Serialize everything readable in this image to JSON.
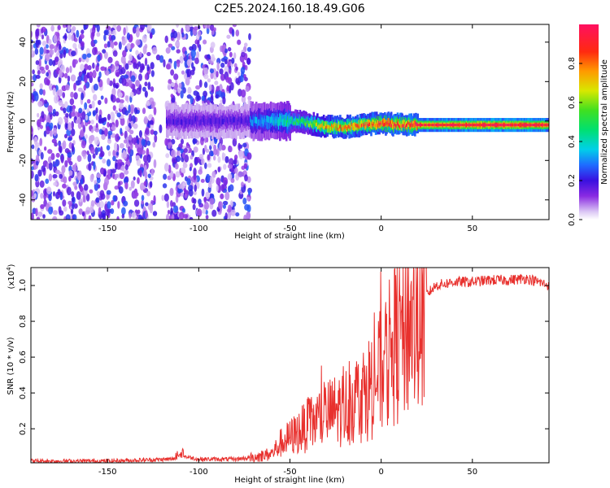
{
  "title": "C2E5.2024.160.18.49.G06",
  "chart_data": [
    {
      "type": "heatmap",
      "xlabel": "Height of straight line (km)",
      "ylabel": "Frequency (Hz)",
      "xlim": [
        -192,
        92
      ],
      "ylim": [
        -50,
        49
      ],
      "xticks": [
        -150,
        -100,
        -50,
        0,
        50
      ],
      "yticks": [
        -40,
        -20,
        0,
        20,
        40
      ],
      "colorbar": {
        "label": "Normalized spectral amplitude",
        "range": [
          0.0,
          1.0
        ],
        "ticks": [
          0.0,
          0.2,
          0.4,
          0.6,
          0.8
        ]
      },
      "ridge": {
        "x": [
          -72,
          -60,
          -50,
          -40,
          -30,
          -20,
          -10,
          0,
          10,
          20,
          40,
          60,
          80,
          92
        ],
        "freq": [
          0,
          0,
          0,
          -1,
          -3,
          -3,
          -2,
          -1,
          -2,
          -2,
          -2,
          -2,
          -2,
          -2
        ],
        "amplitude": [
          0.3,
          0.35,
          0.45,
          0.55,
          0.75,
          0.8,
          0.85,
          0.88,
          0.9,
          0.93,
          0.97,
          1.0,
          1.0,
          0.95
        ]
      },
      "noise_region": {
        "x": [
          -192,
          -72
        ],
        "amplitude": 0.15
      }
    },
    {
      "type": "line",
      "xlabel": "Height of straight line (km)",
      "ylabel": "SNR (10 * v/v)",
      "y_multiplier": "(x10",
      "y_multiplier_exp": "4",
      "xlim": [
        -192,
        92
      ],
      "ylim": [
        0.01,
        1.1
      ],
      "xticks": [
        -150,
        -100,
        -50,
        0,
        50
      ],
      "yticks": [
        0.2,
        0.4,
        0.6,
        0.8,
        1.0
      ],
      "color": "#e8312e",
      "series": [
        {
          "x": [
            -192,
            -150,
            -115,
            -110,
            -100,
            -80,
            -70,
            -60,
            -55,
            -50,
            -40,
            -30,
            -20,
            -10,
            -5,
            0,
            5,
            10,
            15,
            20,
            25,
            30,
            40,
            50,
            60,
            70,
            80,
            92
          ],
          "values": [
            0.02,
            0.02,
            0.03,
            0.05,
            0.03,
            0.03,
            0.04,
            0.06,
            0.12,
            0.15,
            0.22,
            0.28,
            0.32,
            0.4,
            0.45,
            0.52,
            0.62,
            0.72,
            0.8,
            0.82,
            0.95,
            1.0,
            1.02,
            1.02,
            1.03,
            1.03,
            1.04,
            1.0
          ]
        }
      ]
    }
  ]
}
